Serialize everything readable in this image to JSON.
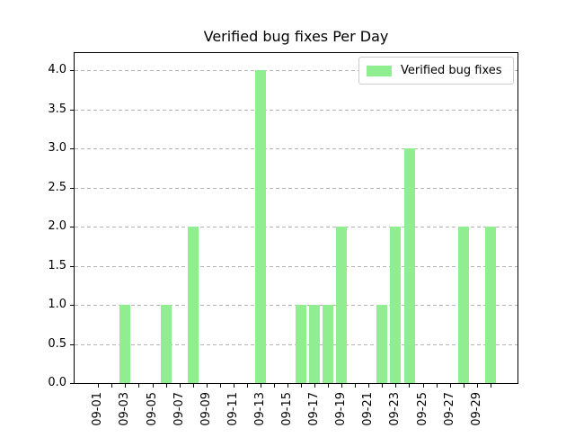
{
  "chart_data": {
    "type": "bar",
    "title": "Verified bug fixes Per Day",
    "xlabel": "",
    "ylabel": "",
    "categories": [
      "09-01",
      "09-02",
      "09-03",
      "09-04",
      "09-05",
      "09-06",
      "09-07",
      "09-08",
      "09-09",
      "09-10",
      "09-11",
      "09-12",
      "09-13",
      "09-14",
      "09-15",
      "09-16",
      "09-17",
      "09-18",
      "09-19",
      "09-20",
      "09-21",
      "09-22",
      "09-23",
      "09-24",
      "09-25",
      "09-26",
      "09-27",
      "09-28",
      "09-29",
      "09-30"
    ],
    "values": [
      0,
      0,
      1,
      0,
      0,
      1,
      0,
      2,
      0,
      0,
      0,
      0,
      4,
      0,
      0,
      1,
      1,
      1,
      2,
      0,
      0,
      1,
      2,
      3,
      0,
      0,
      0,
      2,
      0,
      2
    ],
    "xtick_labels": [
      "09-01",
      "09-03",
      "09-05",
      "09-07",
      "09-09",
      "09-11",
      "09-13",
      "09-15",
      "09-17",
      "09-19",
      "09-21",
      "09-23",
      "09-25",
      "09-27",
      "09-29"
    ],
    "ytick_labels": [
      "0.0",
      "0.5",
      "1.0",
      "1.5",
      "2.0",
      "2.5",
      "3.0",
      "3.5",
      "4.0"
    ],
    "ytick_values": [
      0,
      0.5,
      1,
      1.5,
      2,
      2.5,
      3,
      3.5,
      4
    ],
    "ylim": [
      0,
      4.22
    ],
    "bar_color": "#90EE90",
    "grid": "horizontal-dashed",
    "grid_color": "#b4b4b4",
    "legend": [
      "Verified bug fixes"
    ],
    "legend_position": "upper right"
  }
}
